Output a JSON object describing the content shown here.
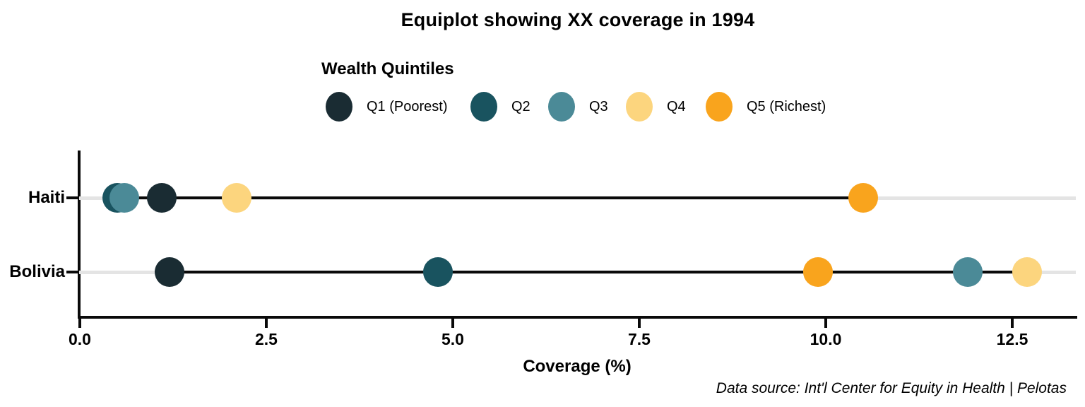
{
  "title": "Equiplot showing XX coverage in 1994",
  "legend": {
    "title": "Wealth Quintiles",
    "items": [
      {
        "label": "Q1 (Poorest)",
        "color": "#1a2c33"
      },
      {
        "label": "Q2",
        "color": "#19535f"
      },
      {
        "label": "Q3",
        "color": "#4b8a97"
      },
      {
        "label": "Q4",
        "color": "#fcd57e"
      },
      {
        "label": "Q5 (Richest)",
        "color": "#f9a41d"
      }
    ]
  },
  "chart_data": {
    "type": "scatter",
    "subtype": "equiplot-dot-plot",
    "title": "Equiplot showing XX coverage in 1994",
    "categories": [
      "Haiti",
      "Bolivia"
    ],
    "series": [
      {
        "name": "Q1 (Poorest)",
        "color": "#1a2c33",
        "values": [
          1.1,
          1.2
        ]
      },
      {
        "name": "Q2",
        "color": "#19535f",
        "values": [
          0.5,
          4.8
        ]
      },
      {
        "name": "Q3",
        "color": "#4b8a97",
        "values": [
          0.6,
          11.9
        ]
      },
      {
        "name": "Q4",
        "color": "#fcd57e",
        "values": [
          2.1,
          12.7
        ]
      },
      {
        "name": "Q5 (Richest)",
        "color": "#f9a41d",
        "values": [
          10.5,
          9.9
        ]
      }
    ],
    "xlabel": "Coverage (%)",
    "ylabel": "",
    "x_ticks": [
      "0.0",
      "2.5",
      "5.0",
      "7.5",
      "10.0",
      "12.5"
    ],
    "x_tick_values": [
      0,
      2.5,
      5,
      7.5,
      10,
      12.5
    ],
    "xlim": [
      0,
      13.35
    ],
    "grid": "horizontal light-gray row gridlines",
    "legend_position": "top-left",
    "range_line": "black line connecting min and max quintile per country"
  },
  "footer": {
    "source": "Data source: Int'l Center for Equity in Health | Pelotas"
  }
}
